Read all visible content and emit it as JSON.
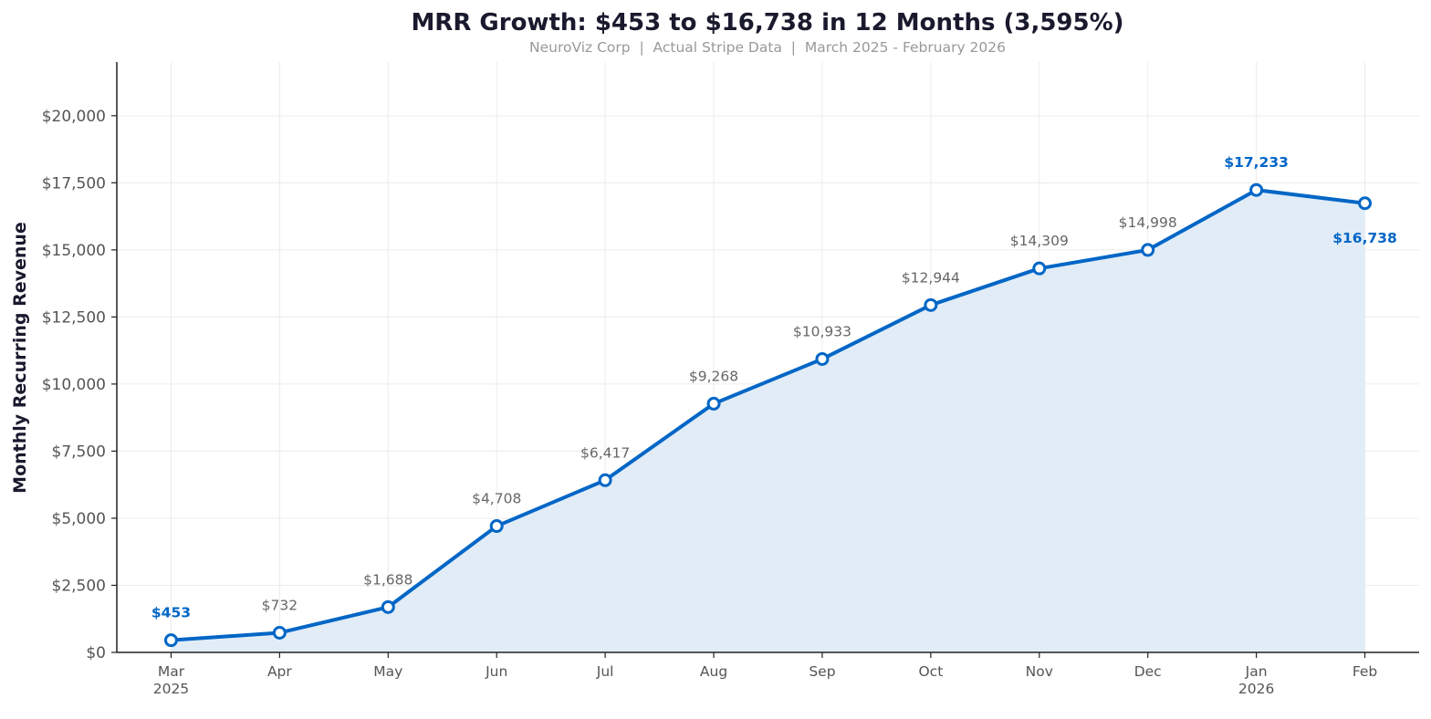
{
  "chart_data": {
    "type": "area",
    "title": "MRR Growth: $453 to $16,738 in 12 Months (3,595%)",
    "subtitle": "NeuroViz Corp  |  Actual Stripe Data  |  March 2025 - February 2026",
    "xlabel": "",
    "ylabel": "Monthly Recurring Revenue",
    "categories": [
      "Mar",
      "Apr",
      "May",
      "Jun",
      "Jul",
      "Aug",
      "Sep",
      "Oct",
      "Nov",
      "Dec",
      "Jan",
      "Feb"
    ],
    "category_sublabels": [
      "2025",
      "",
      "",
      "",
      "",
      "",
      "",
      "",
      "",
      "",
      "2026",
      ""
    ],
    "values": [
      453,
      732,
      1688,
      4708,
      6417,
      9268,
      10933,
      12944,
      14309,
      14998,
      17233,
      16738
    ],
    "data_labels": [
      "$453",
      "$732",
      "$1,688",
      "$4,708",
      "$6,417",
      "$9,268",
      "$10,933",
      "$12,944",
      "$14,309",
      "$14,998",
      "$17,233",
      "$16,738"
    ],
    "highlighted_labels": [
      0,
      10,
      11
    ],
    "ylim": [
      0,
      22000
    ],
    "yticks": [
      0,
      2500,
      5000,
      7500,
      10000,
      12500,
      15000,
      17500,
      20000
    ],
    "ytick_labels": [
      "$0",
      "$2,500",
      "$5,000",
      "$7,500",
      "$10,000",
      "$12,500",
      "$15,000",
      "$17,500",
      "$20,000"
    ],
    "grid": true,
    "colors": {
      "line": "#0066c6",
      "fill": "#dfebf7",
      "highlight_label": "#0066c6",
      "label": "#666666",
      "title": "#1a1a2e",
      "subtitle": "#999999"
    }
  }
}
